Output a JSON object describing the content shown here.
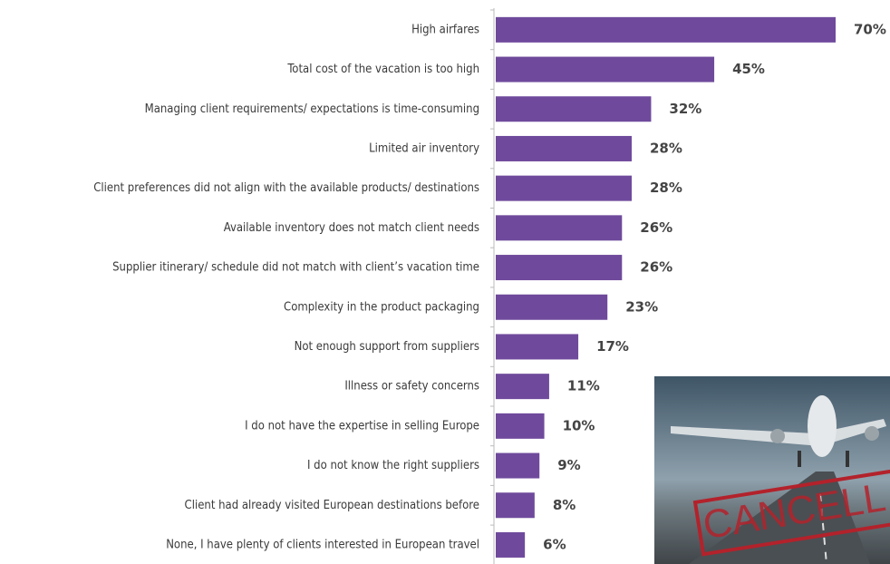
{
  "chart_data": {
    "type": "bar",
    "orientation": "horizontal",
    "categories": [
      "High airfares",
      "Total cost of the vacation is too high",
      "Managing client requirements/ expectations is time-consuming",
      "Limited air inventory",
      "Client preferences did not align with the available products/ destinations",
      "Available inventory does not match client needs",
      "Supplier itinerary/ schedule did not match with client’s vacation time",
      "Complexity in the product packaging",
      "Not enough support from suppliers",
      "Illness or safety concerns",
      "I do not have the expertise in selling Europe",
      "I do not know the right suppliers",
      "Client had already visited European destinations before",
      "None, I have plenty of clients interested in European travel"
    ],
    "values": [
      70,
      45,
      32,
      28,
      28,
      26,
      26,
      23,
      17,
      11,
      10,
      9,
      8,
      6
    ],
    "value_labels": [
      "70%",
      "45%",
      "32%",
      "28%",
      "28%",
      "26%",
      "26%",
      "23%",
      "17%",
      "11%",
      "10%",
      "9%",
      "8%",
      "6%"
    ],
    "color": "#6f4a9c"
  },
  "image": {
    "stamp_text": "CANCELL"
  }
}
